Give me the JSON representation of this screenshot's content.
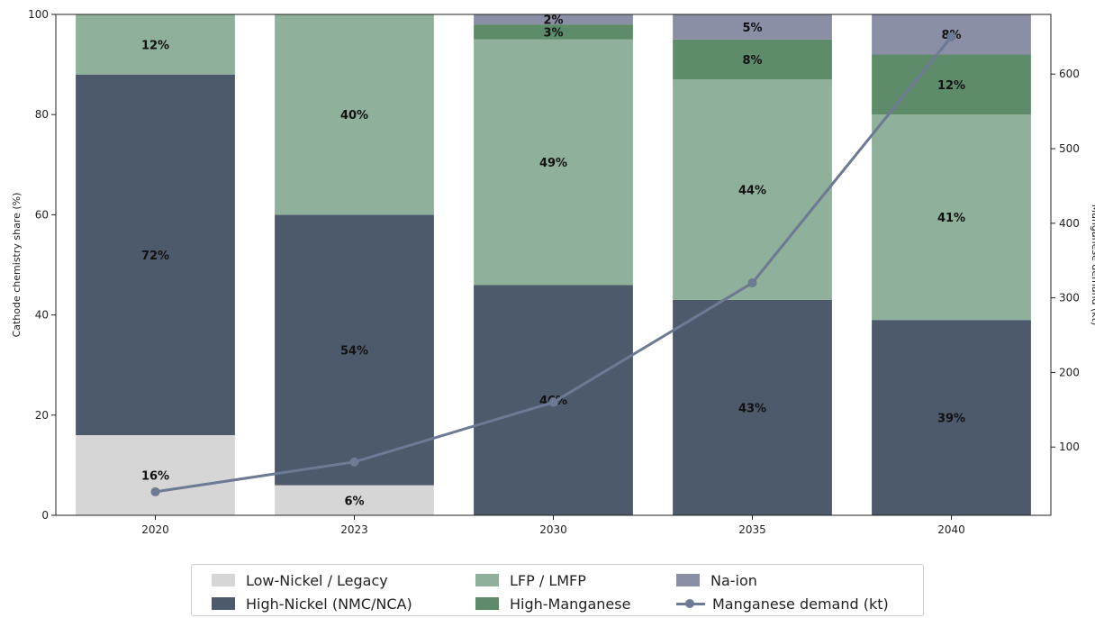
{
  "chart_data": {
    "type": "bar",
    "stacked": true,
    "categories": [
      "2020",
      "2023",
      "2030",
      "2035",
      "2040"
    ],
    "series": [
      {
        "name": "Low-Nickel / Legacy",
        "color": "#d6d6d6",
        "values": [
          16,
          6,
          0,
          0,
          0
        ]
      },
      {
        "name": "High-Nickel (NMC/NCA)",
        "color": "#4d5a6b",
        "values": [
          72,
          54,
          46,
          43,
          39
        ]
      },
      {
        "name": "LFP / LMFP",
        "color": "#8fb09a",
        "values": [
          12,
          40,
          49,
          44,
          41
        ]
      },
      {
        "name": "High-Manganese",
        "color": "#5e8c6a",
        "values": [
          0,
          0,
          3,
          8,
          12
        ]
      },
      {
        "name": "Na-ion",
        "color": "#8a8fa6",
        "values": [
          0,
          0,
          2,
          5,
          8
        ]
      }
    ],
    "line_series": {
      "name": "Manganese demand (kt)",
      "color": "#6c7a93",
      "axis": "right",
      "values": [
        40,
        80,
        160,
        320,
        650
      ]
    },
    "ylabel": "Cathode chemistry share (%)",
    "y2label": "Manganese demand (kt)",
    "ylim": [
      0,
      100
    ],
    "y2lim": [
      8.5,
      680
    ],
    "yticks": [
      0,
      20,
      40,
      60,
      80,
      100
    ],
    "y2ticks": [
      100,
      200,
      300,
      400,
      500,
      600
    ],
    "legend_position": "bottom-center"
  }
}
